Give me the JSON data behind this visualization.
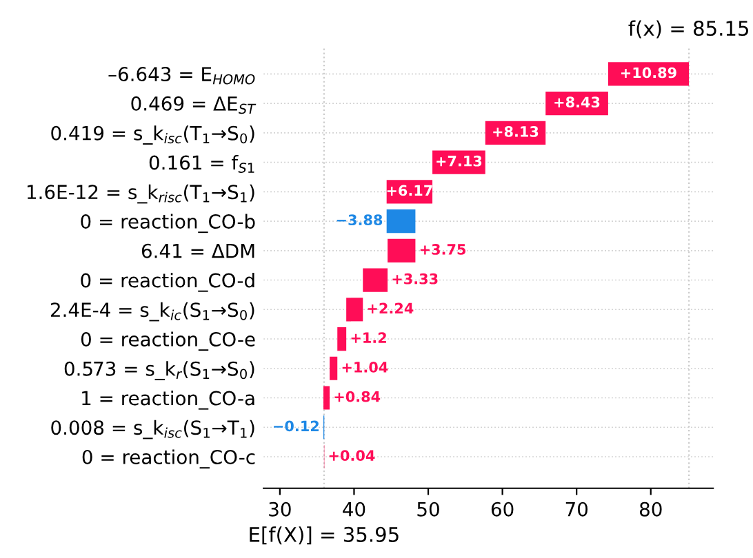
{
  "chart_data": {
    "type": "bar",
    "orientation": "horizontal",
    "categories": [
      "–6.643 = E$_{HOMO}$",
      "0.469 = ΔE$_{ST}$",
      "0.419 = s_k$_{isc}$(T$_{1}$→S$_{0}$)",
      "0.161 = f$_{S1}$",
      "1.6E-12 = s_k$_{risc}$(T$_{1}$→S$_{1}$)",
      "0 = reaction_CO-b",
      "6.41 = ΔDM",
      "0 = reaction_CO-d",
      "2.4E-4 = s_k$_{ic}$(S$_{1}$→S$_{0}$)",
      "0 = reaction_CO-e",
      "0.573 = s_k$_{r}$(S$_{1}$→S$_{0}$)",
      "1 = reaction_CO-a",
      "0.008 = s_k$_{isc}$(S$_{1}$→T$_{1}$)",
      "0 = reaction_CO-c"
    ],
    "values": [
      10.89,
      8.43,
      8.13,
      7.13,
      6.17,
      -3.88,
      3.75,
      3.33,
      2.24,
      1.2,
      1.04,
      0.84,
      -0.12,
      0.04
    ],
    "base": [
      74.25,
      65.82,
      57.69,
      50.56,
      44.39,
      48.27,
      44.52,
      41.19,
      38.95,
      37.75,
      36.71,
      35.87,
      35.99,
      35.95
    ],
    "colors": [
      "#ff0d57",
      "#ff0d57",
      "#ff0d57",
      "#ff0d57",
      "#ff0d57",
      "#1e88e5",
      "#ff0d57",
      "#ff0d57",
      "#ff0d57",
      "#ff0d57",
      "#ff0d57",
      "#ff0d57",
      "#1e88e5",
      "#ff0d57"
    ],
    "value_labels": [
      "+10.89",
      "+8.43",
      "+8.13",
      "+7.13",
      "+6.17",
      "−3.88",
      "+3.75",
      "+3.33",
      "+2.24",
      "+1.2",
      "+1.04",
      "+0.84",
      "−0.12",
      "+0.04"
    ],
    "xlim": [
      27.8,
      88.4
    ],
    "xticks": [
      30,
      40,
      50,
      60,
      70,
      80
    ],
    "ref_lines": [
      {
        "axis": "x",
        "value": 85.15,
        "label": "f(x) = 85.15",
        "color": "#cccccc",
        "line_style": "dotted"
      },
      {
        "axis": "x",
        "value": 35.95,
        "label": "E[f(X)] = 35.95",
        "color": "#cccccc",
        "line_style": "dotted"
      }
    ],
    "grid": "y"
  }
}
